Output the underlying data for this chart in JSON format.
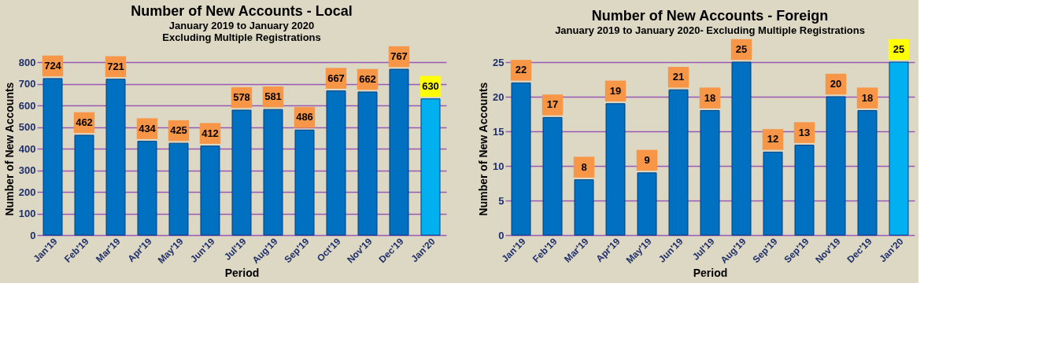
{
  "chart_data": [
    {
      "type": "bar",
      "title": "Number of New Accounts - Local",
      "subtitle": "January 2019 to January 2020\nExcluding Multiple Registrations",
      "xlabel": "Period",
      "ylabel": "Number of New Accounts",
      "categories": [
        "Jan'19",
        "Feb'19",
        "Mar'19",
        "Apr'19",
        "May'19",
        "Jun'19",
        "Jul'19",
        "Aug'19",
        "Sep'19",
        "Oct'19",
        "Nov'19",
        "Dec'19",
        "Jan'20"
      ],
      "values": [
        724,
        462,
        721,
        434,
        425,
        412,
        578,
        581,
        486,
        667,
        662,
        767,
        630
      ],
      "colors": [
        "#0070c0",
        "#0070c0",
        "#0070c0",
        "#0070c0",
        "#0070c0",
        "#0070c0",
        "#0070c0",
        "#0070c0",
        "#0070c0",
        "#0070c0",
        "#0070c0",
        "#0070c0",
        "#00b0f0"
      ],
      "ylim": [
        0,
        800
      ],
      "yticks": [
        0,
        100,
        200,
        300,
        400,
        500,
        600,
        700,
        800
      ],
      "grid": "y",
      "data_labels": true
    },
    {
      "type": "bar",
      "title": "Number of New Accounts - Foreign",
      "subtitle": "January 2019 to January 2020- Excluding Multiple Registrations",
      "xlabel": "Period",
      "ylabel": "Number of New Accounts",
      "categories": [
        "Jan'19",
        "Feb'19",
        "Mar'19",
        "Apr'19",
        "May'19",
        "Jun'19",
        "Jul'19",
        "Aug'19",
        "Sep'19",
        "Sep'19",
        "Nov'19",
        "Dec'19",
        "Jan'20"
      ],
      "values": [
        22,
        17,
        8,
        19,
        9,
        21,
        18,
        25,
        12,
        13,
        20,
        18,
        25
      ],
      "colors": [
        "#0070c0",
        "#0070c0",
        "#0070c0",
        "#0070c0",
        "#0070c0",
        "#0070c0",
        "#0070c0",
        "#0070c0",
        "#0070c0",
        "#0070c0",
        "#0070c0",
        "#0070c0",
        "#00b0f0"
      ],
      "ylim": [
        0,
        25
      ],
      "yticks": [
        0,
        5,
        10,
        15,
        20,
        25
      ],
      "grid": "y",
      "data_labels": true
    }
  ]
}
